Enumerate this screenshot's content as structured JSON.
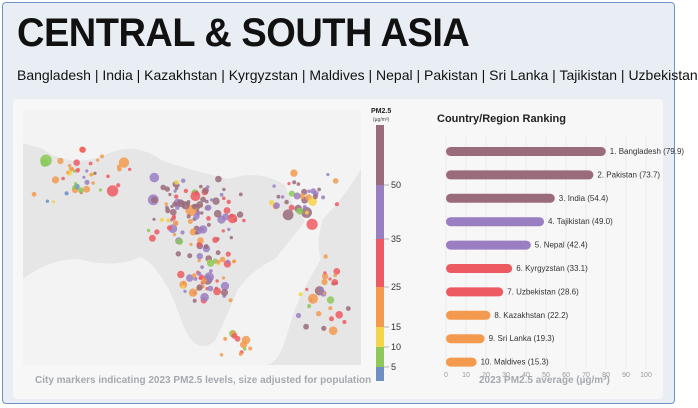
{
  "header": {
    "title": "CENTRAL & SOUTH ASIA",
    "countries": "Bangladesh | India | Kazakhstan | Kyrgyzstan | Maldives | Nepal | Pakistan | Sri Lanka | Tajikistan | Uzbekistan"
  },
  "map": {
    "caption": "City markers indicating 2023 PM2.5 levels, size adjusted for population"
  },
  "legend": {
    "title": "PM2.5",
    "unit": "(µg/m³)",
    "ticks": [
      "50",
      "35",
      "25",
      "15",
      "10",
      "5"
    ],
    "colors": [
      "#9a6b7a",
      "#9a7ec2",
      "#ee5a62",
      "#f39a4e",
      "#f5d44a",
      "#8cc85a",
      "#6d8fc4"
    ]
  },
  "chart_data": {
    "type": "bar",
    "orientation": "horizontal",
    "title": "Country/Region Ranking",
    "xlabel": "2023 PM2.5 average (µg/m³)",
    "xlim": [
      0,
      100
    ],
    "xticks": [
      "0",
      "10",
      "20",
      "30",
      "40",
      "50",
      "60",
      "70",
      "80",
      "90",
      "100"
    ],
    "categories": [
      "1. Bangladesh (79.9)",
      "2. Pakistan (73.7)",
      "3. India (54.4)",
      "4. Tajikistan (49.0)",
      "5. Nepal (42.4)",
      "6. Kyrgyzstan (33.1)",
      "7. Uzbekistan (28.6)",
      "8. Kazakhstan (22.2)",
      "9. Sri Lanka (19.3)",
      "10. Maldives (15.3)"
    ],
    "values": [
      79.9,
      73.7,
      54.4,
      49.0,
      42.4,
      33.1,
      28.6,
      22.2,
      19.3,
      15.3
    ],
    "colors": [
      "#9a6b7a",
      "#9a6b7a",
      "#9a6b7a",
      "#9a7ec2",
      "#9a7ec2",
      "#ee5a62",
      "#ee5a62",
      "#f39a4e",
      "#f39a4e",
      "#f39a4e"
    ],
    "grid": true
  }
}
